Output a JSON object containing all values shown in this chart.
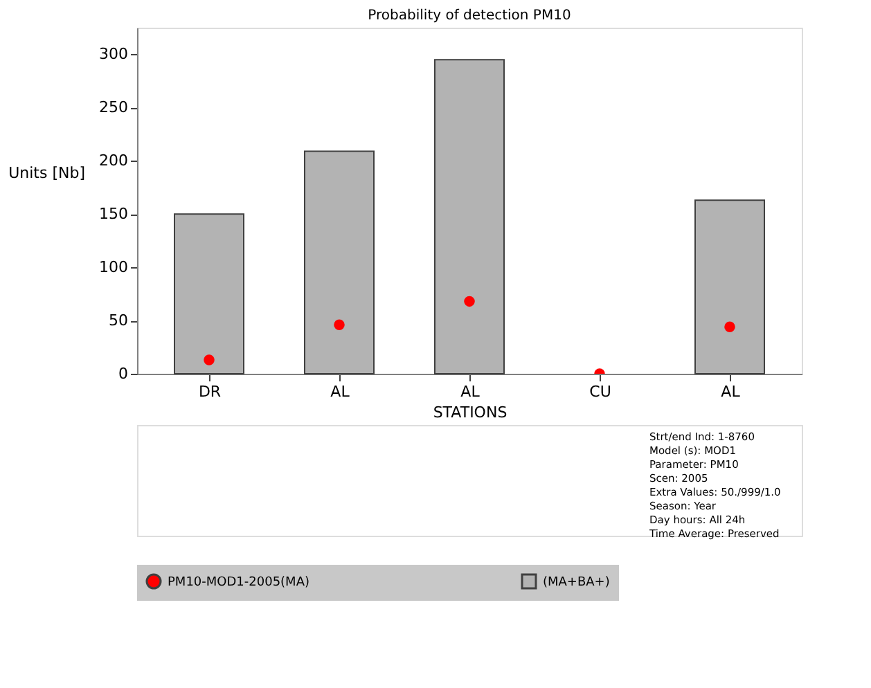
{
  "chart_data": {
    "type": "bar",
    "title": "Probability of detection  PM10",
    "xlabel": "STATIONS",
    "ylabel": "Units [Nb]",
    "categories": [
      "DR",
      "AL",
      "AL",
      "CU",
      "AL"
    ],
    "series": [
      {
        "name": "PM10-MOD1-2005(MA)",
        "type": "scatter",
        "color": "#ff0000",
        "values": [
          13,
          46,
          68,
          0,
          44
        ]
      },
      {
        "name": "(MA+BA+)",
        "color": "#b3b3b3",
        "values": [
          150,
          209,
          295,
          0,
          163
        ]
      }
    ],
    "ylim": [
      0,
      325
    ],
    "yticks": [
      0,
      50,
      100,
      150,
      200,
      250,
      300
    ],
    "grid": false,
    "legend": "bottom",
    "marker": "circle",
    "annotations": [
      "Strt/end Ind: 1-8760",
      "Model (s): MOD1",
      "Parameter: PM10",
      "Scen: 2005",
      "Extra Values: 50./999/1.0",
      "Season: Year",
      "Day hours: All 24h",
      "Time Average: Preserved"
    ]
  }
}
